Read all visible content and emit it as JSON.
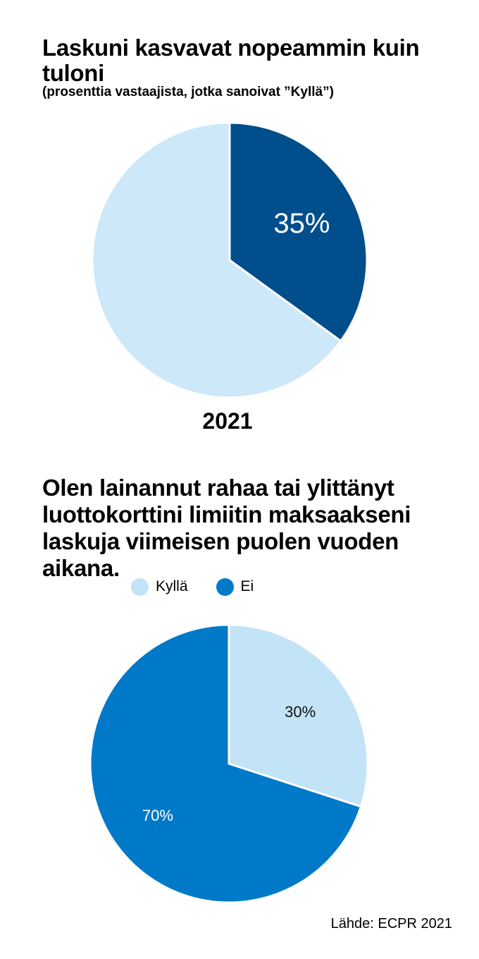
{
  "chart_data": [
    {
      "type": "pie",
      "title": "Laskuni kasvavat nopeammin kuin tuloni",
      "subtitle": "(prosenttia vastaajista, jotka sanoivat ”Kyllä”)",
      "xlabel": "2021",
      "slices": [
        {
          "label": "Kyllä",
          "value": 35,
          "color": "#004e8c",
          "text": "35%",
          "text_color": "#ffffff",
          "show_label": true
        },
        {
          "label": "",
          "value": 65,
          "color": "#cde8f8",
          "text": "",
          "show_label": false
        }
      ]
    },
    {
      "type": "pie",
      "title": "Olen lainannut rahaa tai ylittänyt luottokorttini limiitin maksaakseni laskuja viimeisen puolen vuoden aikana.",
      "legend": [
        {
          "label": "Kyllä",
          "color": "#c3e3f7"
        },
        {
          "label": "Ei",
          "color": "#0079c8"
        }
      ],
      "slices": [
        {
          "label": "Kyllä",
          "value": 30,
          "color": "#c3e3f7",
          "text": "30%",
          "text_color": "#111111",
          "show_label": true
        },
        {
          "label": "Ei",
          "value": 70,
          "color": "#0079c8",
          "text": "70%",
          "text_color": "#ffffff",
          "show_label": true
        }
      ]
    }
  ],
  "source": "Lähde: ECPR 2021"
}
